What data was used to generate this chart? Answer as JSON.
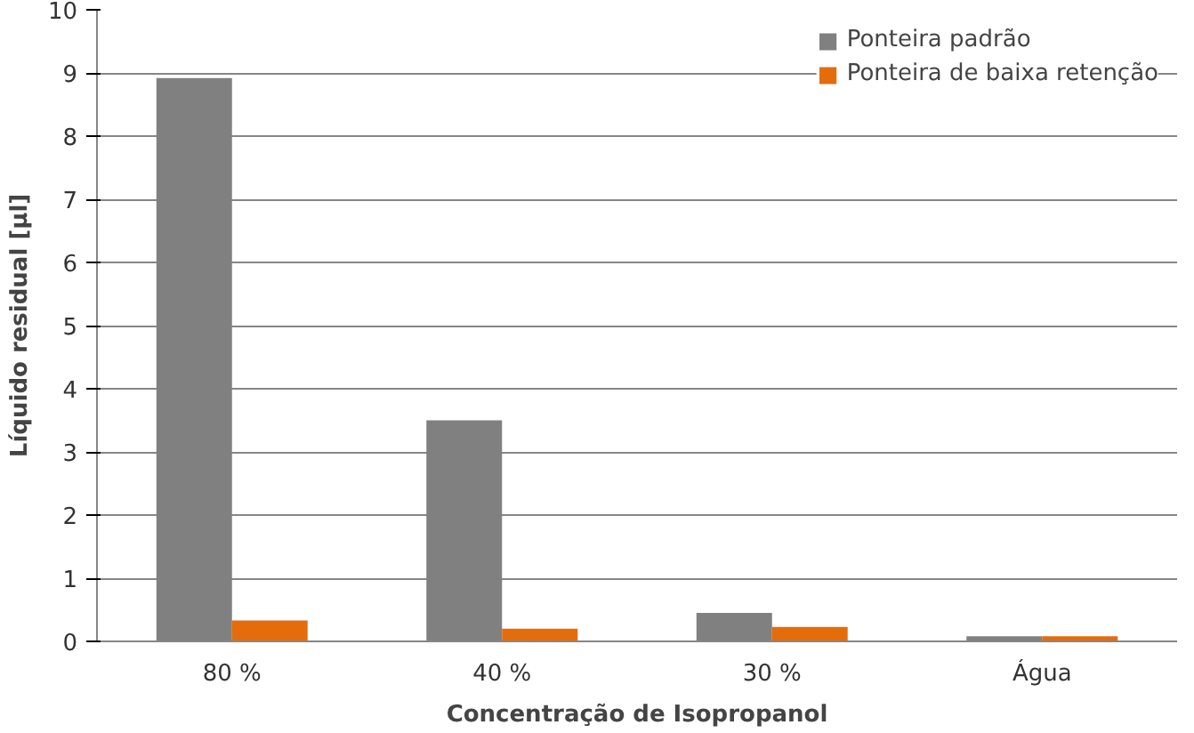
{
  "chart_data": {
    "type": "bar",
    "xlabel": "Concentração de Isopropanol",
    "ylabel": "Líquido residual [µl]",
    "categories": [
      "80 %",
      "40 %",
      "30 %",
      "Água"
    ],
    "series": [
      {
        "name": "Ponteira padrão",
        "color": "#808080",
        "values": [
          8.92,
          3.5,
          0.45,
          0.08
        ]
      },
      {
        "name": "Ponteira de baixa retenção",
        "color": "#e46c0a",
        "values": [
          0.33,
          0.2,
          0.23,
          0.08
        ]
      }
    ],
    "ylim": [
      0,
      10
    ],
    "yticks": [
      0,
      1,
      2,
      3,
      4,
      5,
      6,
      7,
      8,
      9,
      10
    ],
    "grid": "y",
    "legend": "top right"
  }
}
